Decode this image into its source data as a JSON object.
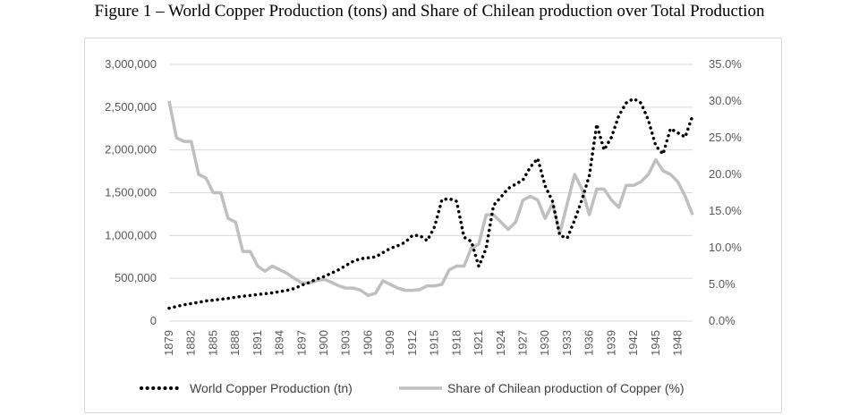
{
  "figure": {
    "caption": "Figure 1 – World Copper Production (tons) and Share of Chilean production over Total Production"
  },
  "chart_data": {
    "type": "line",
    "title": "",
    "y_left": {
      "range": [
        0,
        3000000
      ],
      "ticks": [
        "0",
        "500,000",
        "1,000,000",
        "1,500,000",
        "2,000,000",
        "2,500,000",
        "3,000,000"
      ]
    },
    "y_right": {
      "range": [
        0,
        35
      ],
      "ticks": [
        "0.0%",
        "5.0%",
        "10.0%",
        "15.0%",
        "20.0%",
        "25.0%",
        "30.0%",
        "35.0%"
      ]
    },
    "x_ticks": [
      "1879",
      "1882",
      "1885",
      "1888",
      "1891",
      "1894",
      "1897",
      "1900",
      "1903",
      "1906",
      "1909",
      "1912",
      "1915",
      "1918",
      "1921",
      "1924",
      "1927",
      "1930",
      "1933",
      "1936",
      "1939",
      "1942",
      "1945",
      "1948"
    ],
    "x_range": [
      1879,
      1950
    ],
    "grid": true,
    "legend_position": "bottom",
    "colors": {
      "production": "#000000",
      "share": "#bfbfbf",
      "grid": "#d9d9d9"
    },
    "series": [
      {
        "name": "World Copper Production (tn)",
        "axis": "left",
        "style": "dotted",
        "x": [
          1879,
          1880,
          1881,
          1882,
          1883,
          1884,
          1885,
          1886,
          1887,
          1888,
          1889,
          1890,
          1891,
          1892,
          1893,
          1894,
          1895,
          1896,
          1897,
          1898,
          1899,
          1900,
          1901,
          1902,
          1903,
          1904,
          1905,
          1906,
          1907,
          1908,
          1909,
          1910,
          1911,
          1912,
          1913,
          1914,
          1915,
          1916,
          1917,
          1918,
          1919,
          1920,
          1921,
          1922,
          1923,
          1924,
          1925,
          1926,
          1927,
          1928,
          1929,
          1930,
          1931,
          1932,
          1933,
          1934,
          1935,
          1936,
          1937,
          1938,
          1939,
          1940,
          1941,
          1942,
          1943,
          1944,
          1945,
          1946,
          1947,
          1948,
          1949,
          1950
        ],
        "values": [
          150000,
          170000,
          190000,
          205000,
          220000,
          235000,
          245000,
          255000,
          265000,
          280000,
          290000,
          300000,
          310000,
          320000,
          330000,
          345000,
          360000,
          380000,
          420000,
          450000,
          490000,
          520000,
          560000,
          600000,
          650000,
          700000,
          730000,
          740000,
          750000,
          800000,
          850000,
          880000,
          920000,
          1000000,
          1000000,
          940000,
          1100000,
          1420000,
          1430000,
          1400000,
          980000,
          930000,
          640000,
          850000,
          1350000,
          1450000,
          1550000,
          1600000,
          1650000,
          1800000,
          1900000,
          1580000,
          1400000,
          1000000,
          970000,
          1180000,
          1420000,
          1700000,
          2300000,
          2000000,
          2150000,
          2400000,
          2550000,
          2600000,
          2550000,
          2350000,
          2050000,
          1950000,
          2250000,
          2200000,
          2150000,
          2400000
        ]
      },
      {
        "name": "Share of Chilean production of Copper (%)",
        "axis": "right",
        "style": "solid",
        "x": [
          1879,
          1880,
          1881,
          1882,
          1883,
          1884,
          1885,
          1886,
          1887,
          1888,
          1889,
          1890,
          1891,
          1892,
          1893,
          1894,
          1895,
          1896,
          1897,
          1898,
          1899,
          1900,
          1901,
          1902,
          1903,
          1904,
          1905,
          1906,
          1907,
          1908,
          1909,
          1910,
          1911,
          1912,
          1913,
          1914,
          1915,
          1916,
          1917,
          1918,
          1919,
          1920,
          1921,
          1922,
          1923,
          1924,
          1925,
          1926,
          1927,
          1928,
          1929,
          1930,
          1931,
          1932,
          1933,
          1934,
          1935,
          1936,
          1937,
          1938,
          1939,
          1940,
          1941,
          1942,
          1943,
          1944,
          1945,
          1946,
          1947,
          1948,
          1949,
          1950
        ],
        "values": [
          30.0,
          25.0,
          24.5,
          24.5,
          20.0,
          19.5,
          17.5,
          17.5,
          14.0,
          13.5,
          9.5,
          9.5,
          7.5,
          6.8,
          7.5,
          7.0,
          6.5,
          5.8,
          5.2,
          5.2,
          5.5,
          5.7,
          5.3,
          4.8,
          4.5,
          4.5,
          4.2,
          3.5,
          3.8,
          5.5,
          5.0,
          4.5,
          4.2,
          4.2,
          4.3,
          4.8,
          4.8,
          5.0,
          7.0,
          7.5,
          7.5,
          10.0,
          10.5,
          14.5,
          14.5,
          13.5,
          12.5,
          13.5,
          16.5,
          17.0,
          16.5,
          14.0,
          16.0,
          12.0,
          16.0,
          20.0,
          18.0,
          14.5,
          18.0,
          18.0,
          16.5,
          15.5,
          18.5,
          18.5,
          19.0,
          20.0,
          22.0,
          20.5,
          20.0,
          19.0,
          17.0,
          14.5
        ]
      }
    ]
  },
  "legend": {
    "production_label": "World Copper Production (tn)",
    "share_label": "Share of Chilean production of Copper (%)"
  }
}
